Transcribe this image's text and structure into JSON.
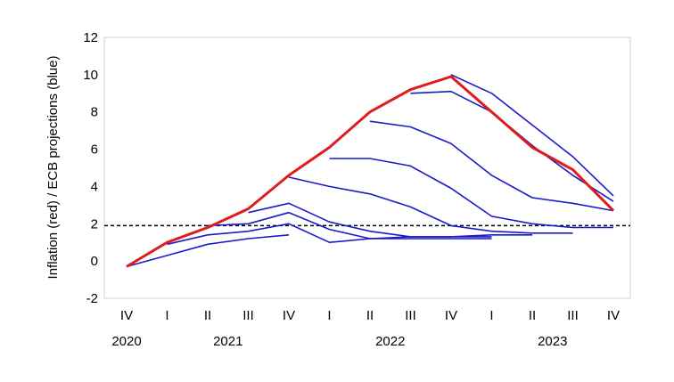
{
  "chart_data": {
    "type": "line",
    "ylabel": "Inflation (red) / ECB projections (blue)",
    "ylim": [
      -2,
      12
    ],
    "yticks": [
      -2,
      0,
      2,
      4,
      6,
      8,
      10,
      12
    ],
    "reference_line": {
      "y": 1.9,
      "style": "dashed",
      "color": "#000000"
    },
    "x_quarters": [
      "IV",
      "I",
      "II",
      "III",
      "IV",
      "I",
      "II",
      "III",
      "IV",
      "I",
      "II",
      "III",
      "IV"
    ],
    "x_years": [
      {
        "label": "2020",
        "at": 0
      },
      {
        "label": "2021",
        "at": 2.5
      },
      {
        "label": "2022",
        "at": 6.5
      },
      {
        "label": "2023",
        "at": 10.5
      }
    ],
    "inflation": {
      "color": "#e01b1b",
      "x": [
        0,
        1,
        2,
        3,
        4,
        5,
        6,
        7,
        8,
        9,
        10,
        11,
        12
      ],
      "y": [
        -0.3,
        1.0,
        1.8,
        2.8,
        4.6,
        6.1,
        8.0,
        9.2,
        9.9,
        8.0,
        6.1,
        4.9,
        2.7
      ]
    },
    "projections": {
      "color": "#1a1ac8",
      "series": [
        {
          "x": [
            0,
            1,
            2,
            3,
            4
          ],
          "y": [
            -0.3,
            0.3,
            0.9,
            1.2,
            1.4
          ]
        },
        {
          "x": [
            1,
            2,
            3,
            4,
            5,
            6,
            7,
            8,
            9
          ],
          "y": [
            0.9,
            1.4,
            1.6,
            2.0,
            1.0,
            1.2,
            1.3,
            1.3,
            1.3
          ]
        },
        {
          "x": [
            2,
            3,
            4,
            5,
            6,
            7,
            8,
            9
          ],
          "y": [
            1.9,
            2.0,
            2.6,
            1.7,
            1.2,
            1.2,
            1.2,
            1.2
          ]
        },
        {
          "x": [
            3,
            4,
            5,
            6,
            7,
            8,
            9,
            10
          ],
          "y": [
            2.6,
            3.1,
            2.1,
            1.6,
            1.3,
            1.3,
            1.4,
            1.4
          ]
        },
        {
          "x": [
            4,
            5,
            6,
            7,
            8,
            9,
            10,
            11
          ],
          "y": [
            4.5,
            4.0,
            3.6,
            2.9,
            1.9,
            1.6,
            1.5,
            1.5
          ]
        },
        {
          "x": [
            5,
            6,
            7,
            8,
            9,
            10,
            11,
            12
          ],
          "y": [
            5.5,
            5.5,
            5.1,
            3.9,
            2.4,
            2.0,
            1.8,
            1.8
          ]
        },
        {
          "x": [
            6,
            7,
            8,
            9,
            10,
            11,
            12
          ],
          "y": [
            7.5,
            7.2,
            6.3,
            4.6,
            3.4,
            3.1,
            2.7
          ]
        },
        {
          "x": [
            7,
            8,
            9,
            10,
            11,
            12
          ],
          "y": [
            9.0,
            9.1,
            8.0,
            6.2,
            4.6,
            3.2
          ]
        },
        {
          "x": [
            8,
            9,
            10,
            11,
            12
          ],
          "y": [
            10.0,
            9.0,
            7.3,
            5.6,
            3.5
          ]
        }
      ]
    }
  }
}
